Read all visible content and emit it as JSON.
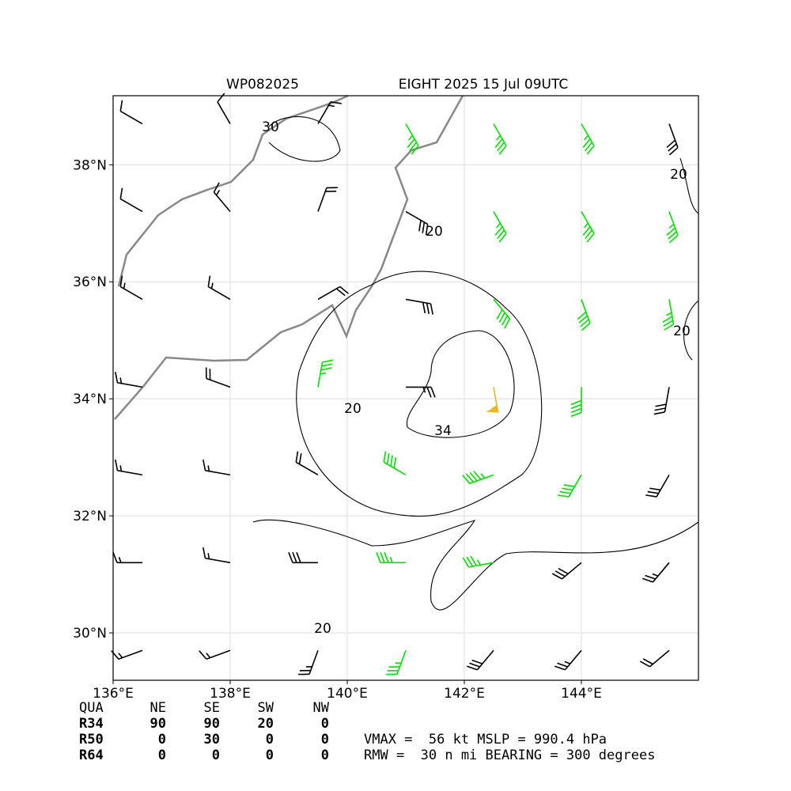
{
  "chart_data": {
    "type": "barbs",
    "title_left": "WP082025",
    "title_right": "EIGHT 2025 15 Jul 09UTC",
    "xlim": [
      136,
      146
    ],
    "ylim": [
      29.19,
      39.18
    ],
    "xticks": [
      {
        "value": 136,
        "label": "136°E"
      },
      {
        "value": 138,
        "label": "138°E"
      },
      {
        "value": 140,
        "label": "140°E"
      },
      {
        "value": 142,
        "label": "142°E"
      },
      {
        "value": 144,
        "label": "144°E"
      }
    ],
    "yticks": [
      {
        "value": 30,
        "label": "30°N"
      },
      {
        "value": 32,
        "label": "32°N"
      },
      {
        "value": 34,
        "label": "34°N"
      },
      {
        "value": 36,
        "label": "36°N"
      },
      {
        "value": 38,
        "label": "38°N"
      }
    ],
    "grid": true,
    "color_levels": [
      {
        "min": 0,
        "color": "#000000"
      },
      {
        "min": 34,
        "color": "#00e000"
      },
      {
        "min": 50,
        "color": "#e8b820"
      }
    ],
    "barbs": [
      [
        136.5,
        38.7,
        10,
        300
      ],
      [
        138,
        38.7,
        10,
        330
      ],
      [
        139.5,
        38.7,
        15,
        30
      ],
      [
        141,
        38.7,
        35,
        150
      ],
      [
        142.5,
        38.7,
        35,
        150
      ],
      [
        144,
        38.7,
        35,
        150
      ],
      [
        145.5,
        38.7,
        30,
        160
      ],
      [
        136.5,
        37.2,
        10,
        300
      ],
      [
        138,
        37.2,
        15,
        320
      ],
      [
        139.5,
        37.2,
        20,
        20
      ],
      [
        141,
        37.2,
        30,
        120
      ],
      [
        142.5,
        37.2,
        35,
        150
      ],
      [
        144,
        37.2,
        35,
        150
      ],
      [
        145.5,
        37.2,
        35,
        160
      ],
      [
        136.5,
        35.7,
        15,
        300
      ],
      [
        138,
        35.7,
        15,
        300
      ],
      [
        139.5,
        35.7,
        20,
        60
      ],
      [
        141,
        35.7,
        30,
        100
      ],
      [
        142.5,
        35.7,
        40,
        140
      ],
      [
        144,
        35.7,
        40,
        160
      ],
      [
        145.5,
        35.7,
        35,
        170
      ],
      [
        136.5,
        34.2,
        15,
        280
      ],
      [
        138,
        34.2,
        20,
        290
      ],
      [
        139.5,
        34.2,
        35,
        10
      ],
      [
        141,
        34.2,
        25,
        90
      ],
      [
        142.5,
        34.2,
        55,
        170
      ],
      [
        144,
        34.2,
        40,
        180
      ],
      [
        145.5,
        34.2,
        30,
        190
      ],
      [
        136.5,
        32.7,
        15,
        280
      ],
      [
        138,
        32.7,
        15,
        280
      ],
      [
        139.5,
        32.7,
        20,
        300
      ],
      [
        141,
        32.7,
        40,
        300
      ],
      [
        142.5,
        32.7,
        45,
        250
      ],
      [
        144,
        32.7,
        40,
        210
      ],
      [
        145.5,
        32.7,
        30,
        210
      ],
      [
        136.5,
        31.2,
        15,
        270
      ],
      [
        138,
        31.2,
        15,
        280
      ],
      [
        139.5,
        31.2,
        30,
        270
      ],
      [
        141,
        31.2,
        35,
        270
      ],
      [
        142.5,
        31.2,
        35,
        260
      ],
      [
        144,
        31.2,
        30,
        230
      ],
      [
        145.5,
        31.2,
        25,
        220
      ],
      [
        136.5,
        29.7,
        15,
        250
      ],
      [
        138,
        29.7,
        15,
        250
      ],
      [
        139.5,
        29.7,
        25,
        200
      ],
      [
        141,
        29.7,
        35,
        200
      ],
      [
        142.5,
        29.7,
        30,
        220
      ],
      [
        144,
        29.7,
        25,
        220
      ],
      [
        145.5,
        29.7,
        20,
        230
      ]
    ],
    "contours": [
      20,
      34,
      30
    ],
    "radii": {
      "header": [
        "QUA",
        "NE",
        "SE",
        "SW",
        "NW"
      ],
      "rows": [
        [
          "R34",
          90,
          90,
          20,
          0
        ],
        [
          "R50",
          0,
          30,
          0,
          0
        ],
        [
          "R64",
          0,
          0,
          0,
          0
        ]
      ]
    },
    "info": [
      "VMAX =  56 kt MSLP = 990.4 hPa",
      "RMW =  30 n mi BEARING = 300 degrees"
    ]
  }
}
